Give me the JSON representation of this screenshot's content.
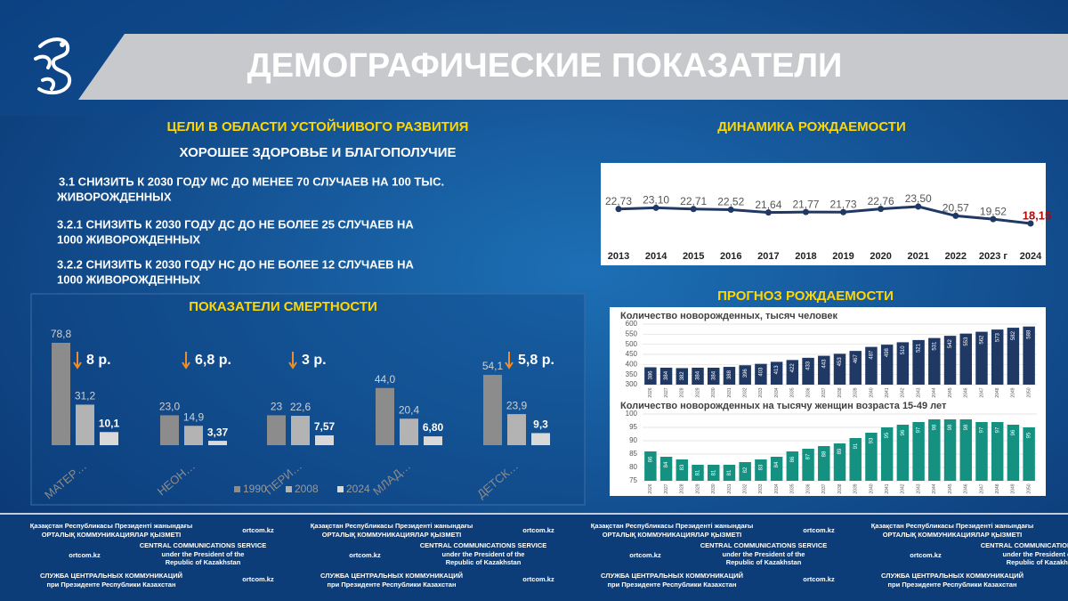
{
  "header": {
    "title": "ДЕМОГРАФИЧЕСКИЕ ПОКАЗАТЕЛИ"
  },
  "goals": {
    "title": "ЦЕЛИ В ОБЛАСТИ УСТОЙЧИВОГО РАЗВИТИЯ",
    "subtitle": "ХОРОШЕЕ ЗДОРОВЬЕ И БЛАГОПОЛУЧИЕ",
    "items": [
      [
        "3.1    СНИЗИТЬ К 2030 ГОДУ МС ДО МЕНЕЕ 70 СЛУЧАЕВ НА 100 ТЫС.",
        "ЖИВОРОЖДЕННЫХ"
      ],
      [
        "3.2.1 СНИЗИТЬ К 2030 ГОДУ ДС ДО НЕ БОЛЕЕ 25 СЛУЧАЕВ НА",
        "1000 ЖИВОРОЖДЕННЫХ"
      ],
      [
        "3.2.2 СНИЗИТЬ К 2030 ГОДУ НС ДО НЕ БОЛЕЕ 12 СЛУЧАЕВ НА",
        "1000 ЖИВОРОЖДЕННЫХ"
      ]
    ]
  },
  "forecast_title": "ПРОГНОЗ РОЖДАЕМОСТИ",
  "chart_data": [
    {
      "type": "bar",
      "title": "ПОКАЗАТЕЛИ СМЕРТНОСТИ",
      "categories": [
        "МАТЕР…",
        "НЕОН…",
        "ПЕРИ…",
        "МЛАД…",
        "ДЕТСК…"
      ],
      "series": [
        {
          "name": "1990",
          "color": "#8c8c8c",
          "values": [
            78.8,
            23.0,
            23,
            44.0,
            54.1
          ],
          "value_labels": [
            "78,8",
            "23,0",
            "23",
            "44,0",
            "54,1"
          ]
        },
        {
          "name": "2008",
          "color": "#b3b3b3",
          "values": [
            31.2,
            14.9,
            22.6,
            20.4,
            23.9
          ],
          "value_labels": [
            "31,2",
            "14,9",
            "22,6",
            "20,4",
            "23,9"
          ]
        },
        {
          "name": "2024",
          "color": "#d9d9d9",
          "values": [
            10.1,
            3.37,
            7.57,
            6.8,
            9.3
          ],
          "value_labels": [
            "10,1",
            "3,37",
            "7,57",
            "6,80",
            "9,3"
          ]
        }
      ],
      "annotations": [
        "8 р.",
        "6,8 р.",
        "3 р.",
        null,
        "5,8 р."
      ]
    },
    {
      "type": "line",
      "title": "ДИНАМИКА РОЖДАЕМОСТИ",
      "categories": [
        "2013",
        "2014",
        "2015",
        "2016",
        "2017",
        "2018",
        "2019",
        "2020",
        "2021",
        "2022",
        "2023 г",
        "2024"
      ],
      "values": [
        22.73,
        23.1,
        22.71,
        22.52,
        21.64,
        21.77,
        21.73,
        22.76,
        23.5,
        20.57,
        19.52,
        18.15
      ],
      "value_labels": [
        "22,73",
        "23,10",
        "22,71",
        "22,52",
        "21,64",
        "21,77",
        "21,73",
        "22,76",
        "23,50",
        "20,57",
        "19,52",
        "18,15"
      ],
      "color": "#1f3864",
      "highlight_color": "#c00000"
    },
    {
      "type": "bar",
      "title": "Количество новорожденных, тысяч человек",
      "categories": [
        "2026",
        "2027",
        "2028",
        "2029",
        "2030",
        "2031",
        "2032",
        "2033",
        "2034",
        "2035",
        "2036",
        "2037",
        "2038",
        "2039",
        "2040",
        "2041",
        "2042",
        "2043",
        "2044",
        "2045",
        "2046",
        "2047",
        "2048",
        "2049",
        "2050"
      ],
      "values": [
        386,
        384,
        382,
        384,
        384,
        388,
        396,
        403,
        413,
        422,
        433,
        443,
        453,
        467,
        487,
        498,
        510,
        521,
        531,
        542,
        553,
        562,
        573,
        582,
        588
      ],
      "color": "#1f3864",
      "ylim": [
        300,
        600
      ],
      "yticks": [
        300,
        350,
        400,
        450,
        500,
        550,
        600
      ],
      "grid": true
    },
    {
      "type": "bar",
      "title": "Количество новорожденных на тысячу женщин возраста 15-49 лет",
      "categories": [
        "2026",
        "2027",
        "2028",
        "2029",
        "2030",
        "2031",
        "2032",
        "2033",
        "2034",
        "2035",
        "2036",
        "2037",
        "2038",
        "2039",
        "2040",
        "2041",
        "2042",
        "2043",
        "2044",
        "2045",
        "2046",
        "2047",
        "2048",
        "2049",
        "2050"
      ],
      "values": [
        86,
        84,
        83,
        81,
        81,
        81,
        82,
        83,
        84,
        86,
        87,
        88,
        89,
        91,
        93,
        95,
        96,
        97,
        98,
        98,
        98,
        97,
        97,
        96,
        95
      ],
      "color": "#149180",
      "ylim": [
        75,
        100
      ],
      "yticks": [
        75,
        80,
        85,
        90,
        95,
        100
      ],
      "grid": true
    }
  ],
  "footer": {
    "kz": [
      "Қазақстан Республикасы Президенті жанындағы",
      "ОРТАЛЫҚ КОММУНИКАЦИЯЛАР ҚЫЗМЕТІ"
    ],
    "en": [
      "CENTRAL COMMUNICATIONS SERVICE",
      "under the President of the",
      "Republic of Kazakhstan"
    ],
    "ru": [
      "СЛУЖБА ЦЕНТРАЛЬНЫХ КОММУНИКАЦИЙ",
      "при Президенте Республики Казахстан"
    ],
    "site": "ortcom.kz"
  }
}
